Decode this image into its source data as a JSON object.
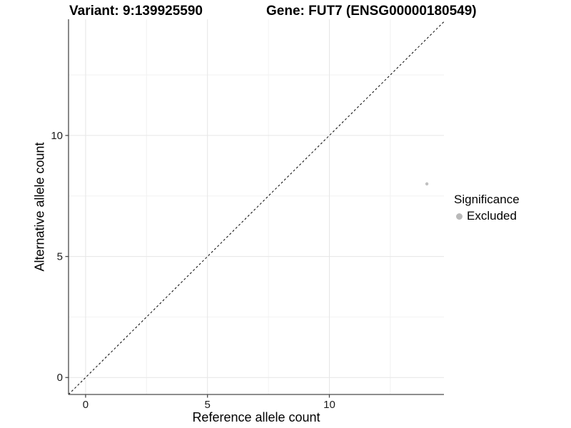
{
  "figure": {
    "title_left": "Variant: 9:139925590",
    "title_right": "Gene: FUT7 (ENSG00000180549)"
  },
  "chart_data": {
    "type": "scatter",
    "title_left": "Variant: 9:139925590",
    "title_right": "Gene: FUT7 (ENSG00000180549)",
    "xlabel": "Reference allele count",
    "ylabel": "Alternative allele count",
    "xlim": [
      -0.7,
      14.7
    ],
    "ylim": [
      -0.7,
      14.8
    ],
    "xticks": [
      0,
      5,
      10
    ],
    "yticks": [
      0,
      5,
      10
    ],
    "x_minor_ticks": [
      2.5,
      7.5,
      12.5
    ],
    "y_minor_ticks": [
      2.5,
      7.5,
      12.5
    ],
    "grid": true,
    "points": [
      {
        "x": 14,
        "y": 8,
        "significance": "Excluded"
      }
    ],
    "identity_line": {
      "slope": 1,
      "intercept": 0,
      "style": "dashed",
      "color": "#000000"
    },
    "legend": {
      "title": "Significance",
      "position": "right",
      "items": [
        {
          "label": "Excluded",
          "color": "#b9b9b9"
        }
      ]
    },
    "colors": {
      "point": "#c0c0c0",
      "grid_major": "#e6e6e6",
      "grid_minor": "#f2f2f2",
      "axis": "#4a4a4a",
      "tick_label": "#1a1a1a",
      "background": "#ffffff"
    }
  }
}
